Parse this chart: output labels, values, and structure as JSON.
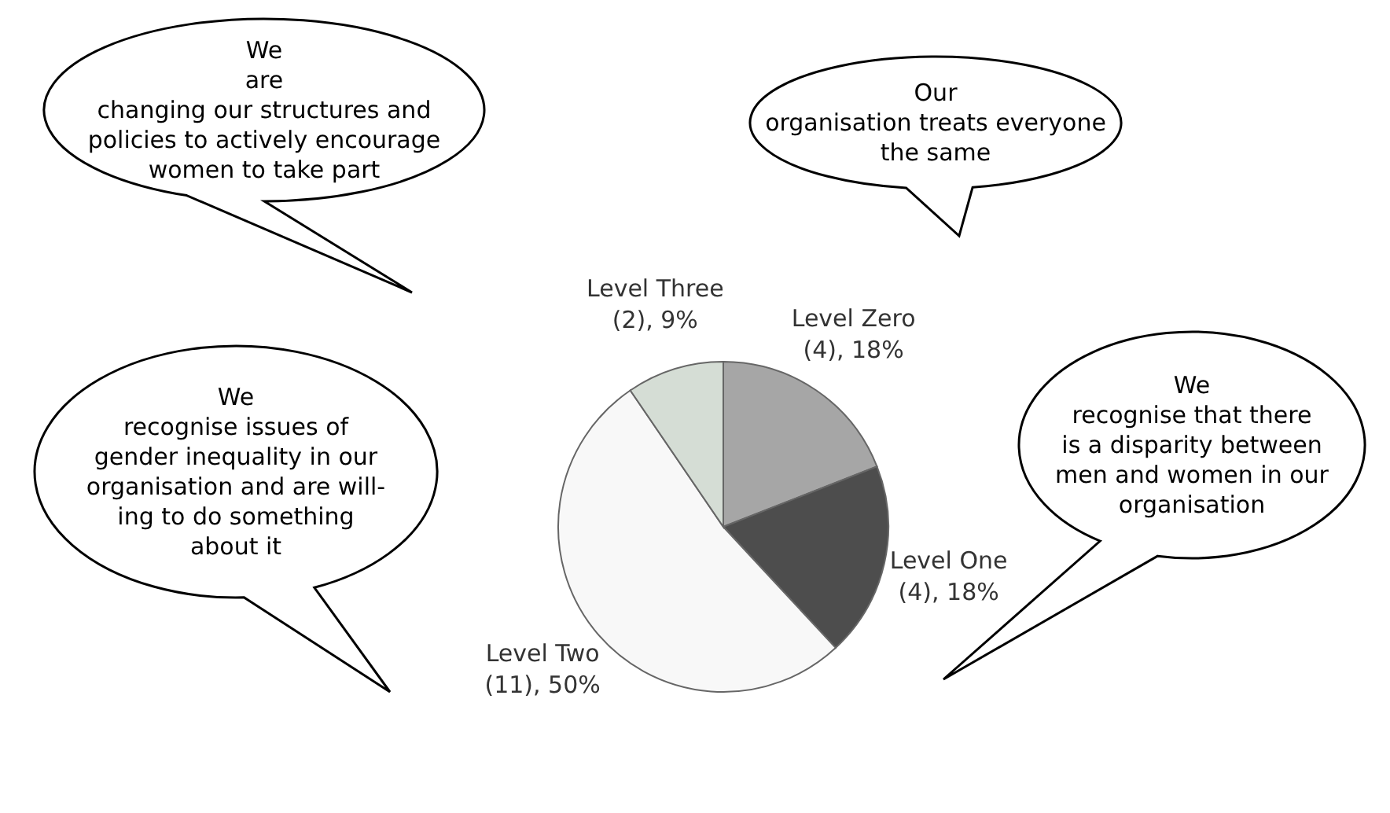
{
  "chart_data": {
    "type": "pie",
    "categories": [
      "Level Zero",
      "Level One",
      "Level Two",
      "Level Three"
    ],
    "values": [
      4,
      4,
      11,
      2
    ],
    "value_labels": [
      "(4), 18%",
      "(4), 18%",
      "(11), 50%",
      "(2), 9%"
    ],
    "colors": [
      "#a6a6a6",
      "#4d4d4d",
      "#f8f8f8",
      "#d5ddd5"
    ],
    "annotations": [
      "We\nare\nchanging our structures and\npolicies to actively encourage\nwomen to take part",
      "Our\norganisation treats everyone\nthe same",
      "We\nrecognise issues of\ngender inequality in our\norganisation and are will-\ning to do something\nabout it",
      "We\nrecognise that there\nis a disparity between\nmen and women in our\norganisation"
    ]
  }
}
